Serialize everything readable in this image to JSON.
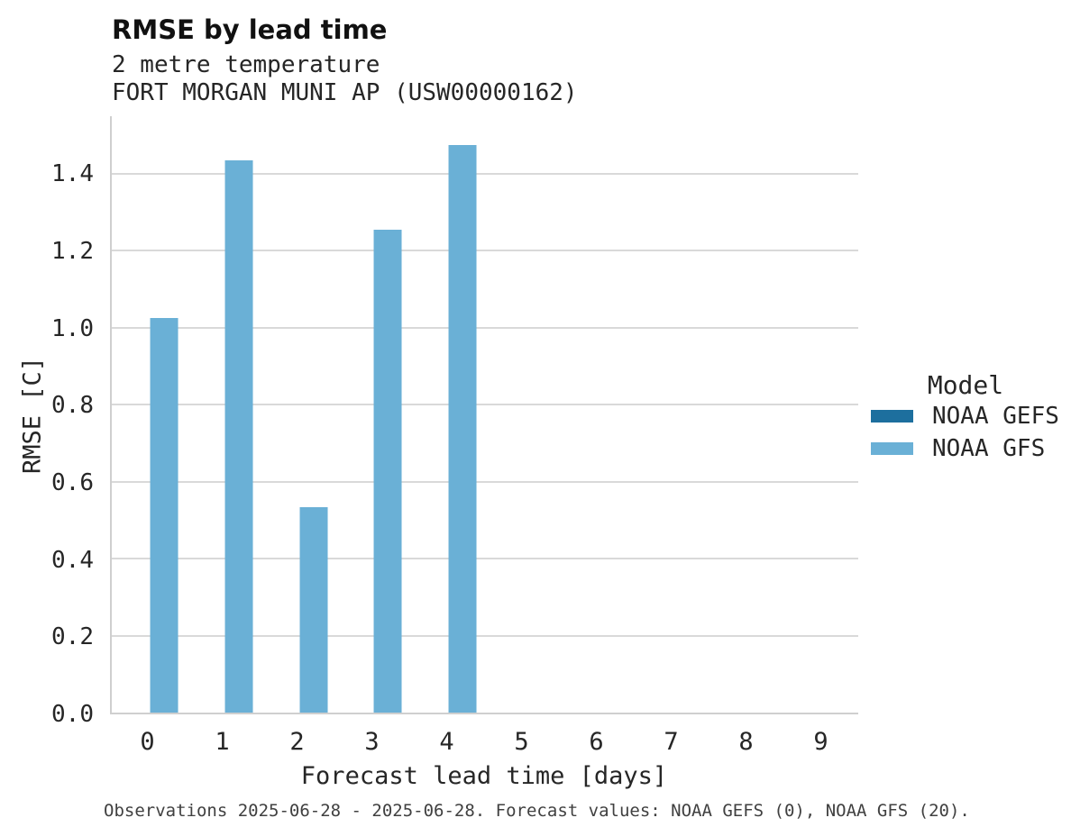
{
  "window": {
    "background": "#ffffff"
  },
  "chart_data": {
    "type": "bar",
    "title": "RMSE by lead time",
    "subtitle_lines": [
      "2 metre temperature",
      "FORT MORGAN MUNI AP (USW00000162)"
    ],
    "xlabel": "Forecast lead time [days]",
    "ylabel": "RMSE [C]",
    "categories": [
      "0",
      "1",
      "2",
      "3",
      "4",
      "5",
      "6",
      "7",
      "8",
      "9"
    ],
    "series": [
      {
        "name": "NOAA GEFS",
        "color": "#1d6f9e",
        "values": [
          null,
          null,
          null,
          null,
          null,
          null,
          null,
          null,
          null,
          null
        ]
      },
      {
        "name": "NOAA GFS",
        "color": "#6ab0d6",
        "values": [
          1.025,
          1.435,
          0.535,
          1.255,
          1.475,
          null,
          null,
          null,
          null,
          null
        ]
      }
    ],
    "ylim": [
      0,
      1.55
    ],
    "yticks": [
      0.0,
      0.2,
      0.4,
      0.6,
      0.8,
      1.0,
      1.2,
      1.4
    ],
    "grid": true,
    "legend_title": "Model",
    "legend_position": "right",
    "caption": "Observations 2025-06-28 - 2025-06-28. Forecast values: NOAA GEFS (0), NOAA GFS (20)."
  },
  "colors": {
    "grid": "#d9d9d9",
    "spine": "#cfcfcf",
    "text": "#262626",
    "caption_text": "#404040"
  }
}
